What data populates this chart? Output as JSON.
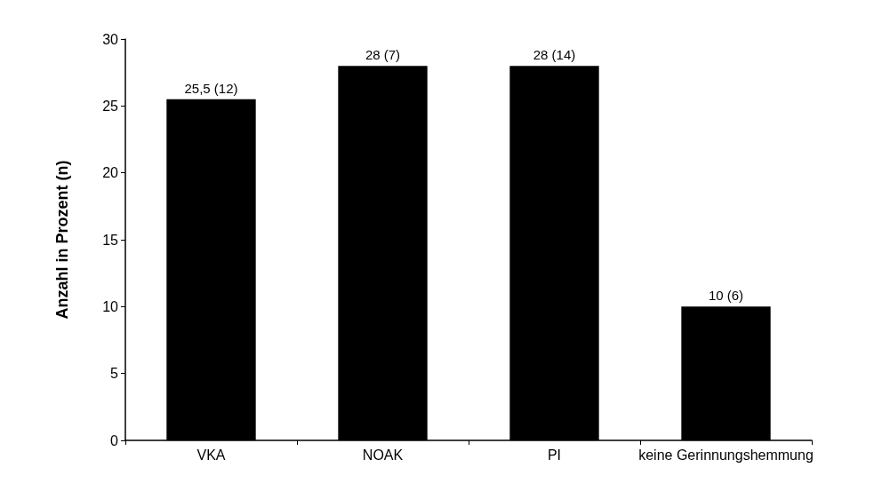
{
  "chart_data": {
    "type": "bar",
    "ylabel": "Anzahl in Prozent (n)",
    "categories": [
      "VKA",
      "NOAK",
      "PI",
      "keine Gerinnungshemmung"
    ],
    "values": [
      25.5,
      28,
      28,
      10
    ],
    "value_labels": [
      "25,5 (12)",
      "28 (7)",
      "28 (14)",
      "10 (6)"
    ],
    "color": "#000000",
    "ylim": [
      0,
      30
    ],
    "yticks": [
      0,
      5,
      10,
      15,
      20,
      25,
      30
    ],
    "grid": false
  }
}
